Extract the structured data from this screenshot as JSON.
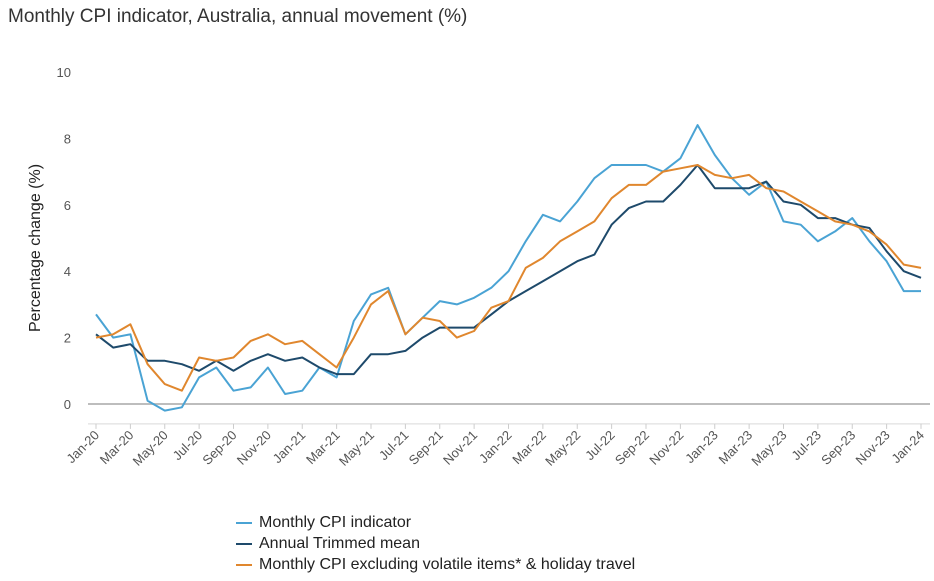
{
  "chart_data": {
    "type": "line",
    "title": "Monthly CPI indicator, Australia, annual movement (%)",
    "ylabel": "Percentage change (%)",
    "xlabel": "",
    "ylim": [
      -0.6,
      10
    ],
    "yticks": [
      0,
      2,
      4,
      6,
      8,
      10
    ],
    "grid": false,
    "legend_position": "bottom",
    "x": [
      "Jan-20",
      "Feb-20",
      "Mar-20",
      "Apr-20",
      "May-20",
      "Jun-20",
      "Jul-20",
      "Aug-20",
      "Sep-20",
      "Oct-20",
      "Nov-20",
      "Dec-20",
      "Jan-21",
      "Feb-21",
      "Mar-21",
      "Apr-21",
      "May-21",
      "Jun-21",
      "Jul-21",
      "Aug-21",
      "Sep-21",
      "Oct-21",
      "Nov-21",
      "Dec-21",
      "Jan-22",
      "Feb-22",
      "Mar-22",
      "Apr-22",
      "May-22",
      "Jun-22",
      "Jul-22",
      "Aug-22",
      "Sep-22",
      "Oct-22",
      "Nov-22",
      "Dec-22",
      "Jan-23",
      "Feb-23",
      "Mar-23",
      "Apr-23",
      "May-23",
      "Jun-23",
      "Jul-23",
      "Aug-23",
      "Sep-23",
      "Oct-23",
      "Nov-23",
      "Dec-23",
      "Jan-24"
    ],
    "xticks": [
      "Jan-20",
      "Mar-20",
      "May-20",
      "Jul-20",
      "Sep-20",
      "Nov-20",
      "Jan-21",
      "Mar-21",
      "May-21",
      "Jul-21",
      "Sep-21",
      "Nov-21",
      "Jan-22",
      "Mar-22",
      "May-22",
      "Jul-22",
      "Sep-22",
      "Nov-22",
      "Jan-23",
      "Mar-23",
      "May-23",
      "Jul-23",
      "Sep-23",
      "Nov-23",
      "Jan-24"
    ],
    "series": [
      {
        "name": "Monthly CPI indicator",
        "color": "#4aa3d4",
        "values": [
          2.7,
          2.0,
          2.1,
          0.1,
          -0.2,
          -0.1,
          0.8,
          1.1,
          0.4,
          0.5,
          1.1,
          0.3,
          0.4,
          1.1,
          0.8,
          2.5,
          3.3,
          3.5,
          2.1,
          2.6,
          3.1,
          3.0,
          3.2,
          3.5,
          4.0,
          4.9,
          5.7,
          5.5,
          6.1,
          6.8,
          7.2,
          7.2,
          7.2,
          7.0,
          7.4,
          8.4,
          7.5,
          6.8,
          6.3,
          6.7,
          5.5,
          5.4,
          4.9,
          5.2,
          5.6,
          4.9,
          4.3,
          3.4,
          3.4
        ]
      },
      {
        "name": "Annual Trimmed mean",
        "color": "#1e4a6b",
        "values": [
          2.1,
          1.7,
          1.8,
          1.3,
          1.3,
          1.2,
          1.0,
          1.3,
          1.0,
          1.3,
          1.5,
          1.3,
          1.4,
          1.1,
          0.9,
          0.9,
          1.5,
          1.5,
          1.6,
          2.0,
          2.3,
          2.3,
          2.3,
          2.7,
          3.1,
          3.4,
          3.7,
          4.0,
          4.3,
          4.5,
          5.4,
          5.9,
          6.1,
          6.1,
          6.6,
          7.2,
          6.5,
          6.5,
          6.5,
          6.7,
          6.1,
          6.0,
          5.6,
          5.6,
          5.4,
          5.3,
          4.6,
          4.0,
          3.8
        ]
      },
      {
        "name": "Monthly CPI excluding volatile items* & holiday travel",
        "color": "#e0872e",
        "values": [
          2.0,
          2.1,
          2.4,
          1.2,
          0.6,
          0.4,
          1.4,
          1.3,
          1.4,
          1.9,
          2.1,
          1.8,
          1.9,
          1.5,
          1.1,
          2.0,
          3.0,
          3.4,
          2.1,
          2.6,
          2.5,
          2.0,
          2.2,
          2.9,
          3.1,
          4.1,
          4.4,
          4.9,
          5.2,
          5.5,
          6.2,
          6.6,
          6.6,
          7.0,
          7.1,
          7.2,
          6.9,
          6.8,
          6.9,
          6.5,
          6.4,
          6.1,
          5.8,
          5.5,
          5.4,
          5.2,
          4.8,
          4.2,
          4.1
        ]
      }
    ]
  }
}
